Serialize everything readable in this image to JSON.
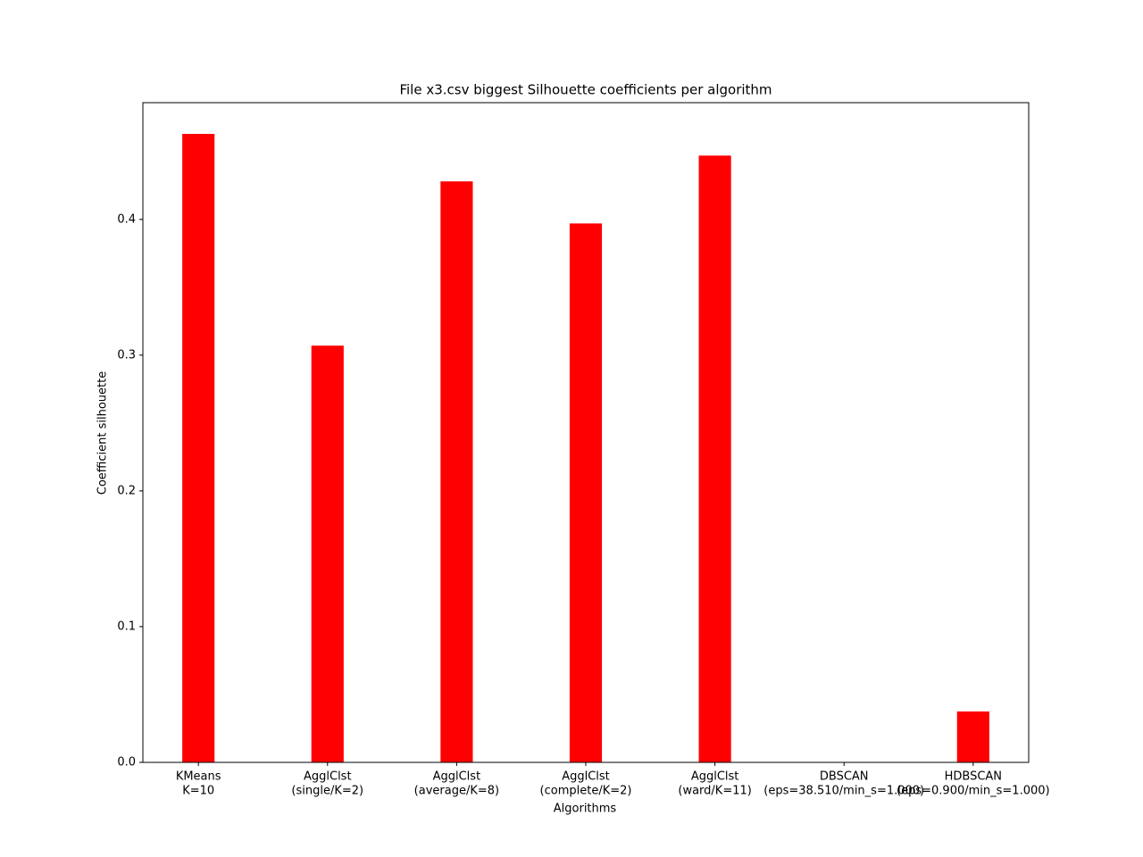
{
  "chart_data": {
    "type": "bar",
    "title": "File x3.csv biggest Silhouette coefficients per algorithm",
    "x_label": "Algorithms",
    "y_label": "Coefficient silhouette",
    "categories": [
      [
        "KMeans",
        "K=10"
      ],
      [
        "AgglClst",
        "(single/K=2)"
      ],
      [
        "AgglClst",
        "(average/K=8)"
      ],
      [
        "AgglClst",
        "(complete/K=2)"
      ],
      [
        "AgglClst",
        "(ward/K=11)"
      ],
      [
        "DBSCAN",
        "(eps=38.510/min_s=1.000)"
      ],
      [
        "HDBSCAN",
        "(eps=0.900/min_s=1.000)"
      ]
    ],
    "values": [
      0.463,
      0.307,
      0.428,
      0.397,
      0.447,
      0,
      0.0375
    ],
    "color": "#ff0000",
    "ylim": [
      0,
      0.486
    ],
    "yticks": [
      {
        "value": 0,
        "label": "0.0"
      },
      0.1,
      0.2,
      0.3,
      0.4
    ],
    "grid": false
  }
}
